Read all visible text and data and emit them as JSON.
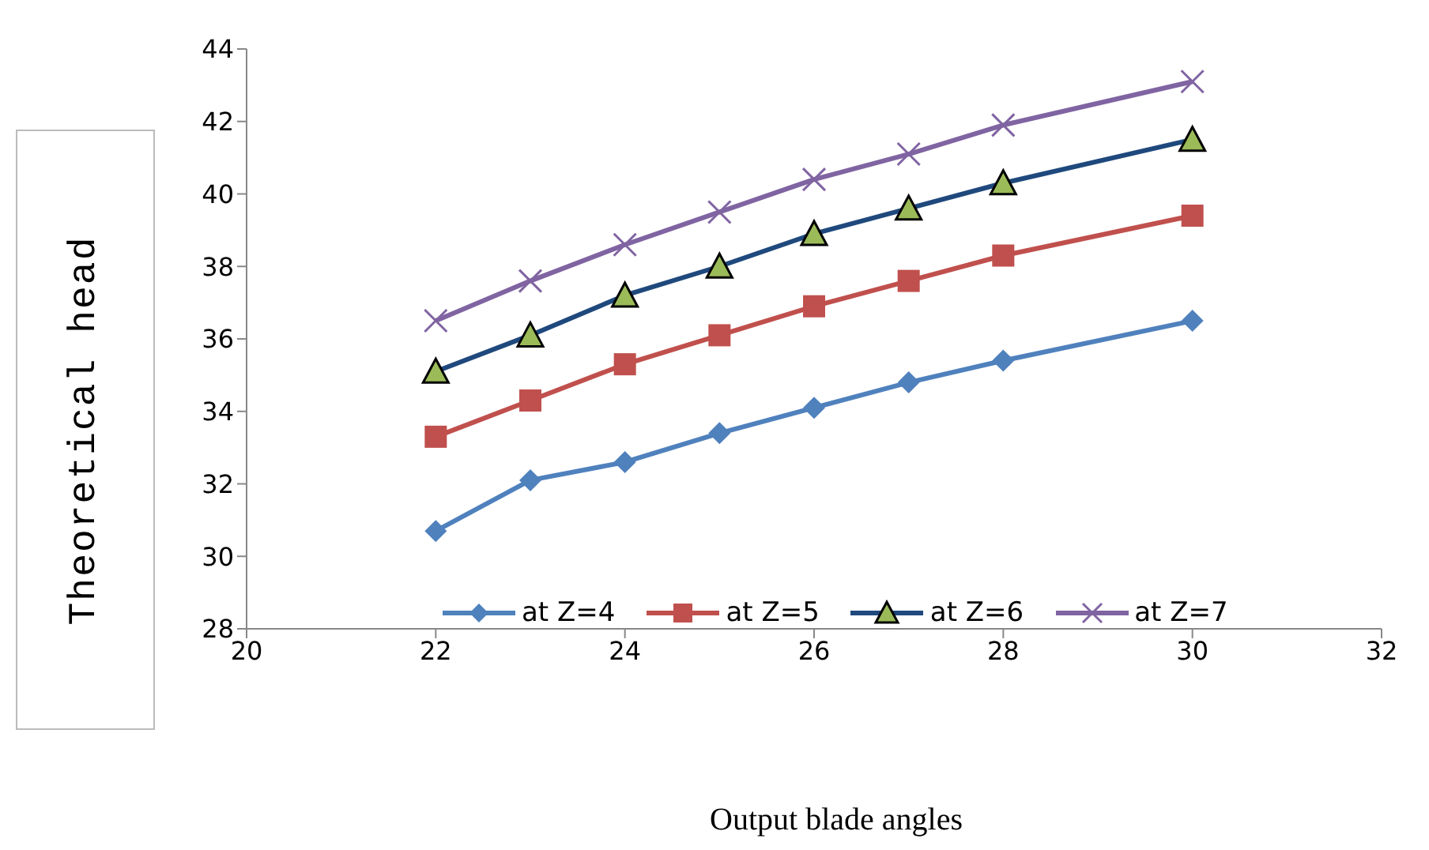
{
  "chart_data": {
    "type": "line",
    "xlabel": "Output blade angles",
    "ylabel": "Theoretical head",
    "x": [
      22,
      23,
      24,
      25,
      26,
      27,
      28,
      30
    ],
    "xlim": [
      20,
      32
    ],
    "xticks": [
      20,
      22,
      24,
      26,
      28,
      30,
      32
    ],
    "ylim": [
      28,
      44
    ],
    "yticks": [
      28,
      30,
      32,
      34,
      36,
      38,
      40,
      42,
      44
    ],
    "grid": false,
    "legend": "bottom",
    "line_style": "solid",
    "series": [
      {
        "name": "at Z=4",
        "color": "#4f81bd",
        "marker": "diamond",
        "values": [
          30.7,
          32.1,
          32.6,
          33.4,
          34.1,
          34.8,
          35.4,
          36.5
        ]
      },
      {
        "name": "at Z=5",
        "color": "#c0504d",
        "marker": "square",
        "values": [
          33.3,
          34.3,
          35.3,
          36.1,
          36.9,
          37.6,
          38.3,
          39.4
        ]
      },
      {
        "name": "at Z=6",
        "color": "#1f497d",
        "marker": "triangle",
        "values": [
          35.1,
          36.1,
          37.2,
          38.0,
          38.9,
          39.6,
          40.3,
          41.5
        ]
      },
      {
        "name": "at Z=7",
        "color": "#8064a2",
        "marker": "cross",
        "values": [
          36.5,
          37.6,
          38.6,
          39.5,
          40.4,
          41.1,
          41.9,
          43.1
        ]
      }
    ]
  }
}
